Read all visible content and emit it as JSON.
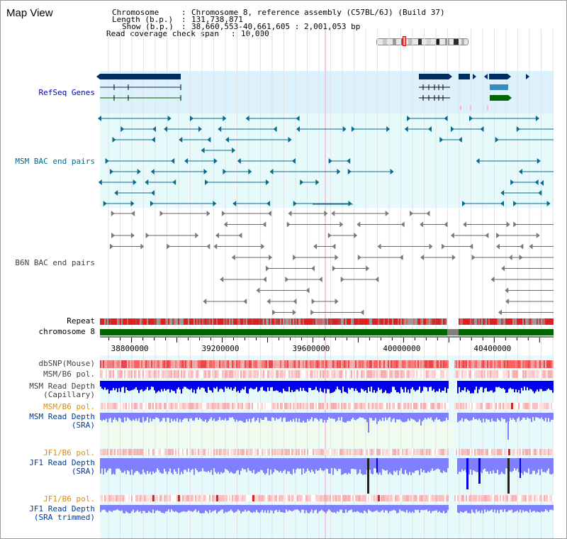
{
  "page": {
    "title": "Map View"
  },
  "info": {
    "chromosome_label": "Chromosome",
    "chromosome_value": "Chromosome 8, reference assembly (C57BL/6J) (Build 37)",
    "length_label": "Length (b.p.)",
    "length_value": "131,738,871",
    "show_label": "Show (b.p.)",
    "show_value": "38,660,553-40,661,605 : 2,001,053 bp",
    "coverage_label": "Read coverage check span",
    "coverage_value": "10,000"
  },
  "tracks": {
    "refseq": "RefSeq Genes",
    "msm_bac": "MSM BAC end pairs",
    "b6n_bac": "B6N BAC end pairs",
    "repeat": "Repeat",
    "chromosome": "chromosome 8",
    "dbsnp": "dbSNP(Mouse)",
    "msm_b6_pol": "MSM/B6 pol.",
    "msm_depth_cap_1": "MSM Read Depth",
    "msm_depth_cap_2": "(Capillary)",
    "msm_b6_pol_2": "MSM/B6 pol.",
    "msm_depth_sra_1": "MSM Read Depth",
    "msm_depth_sra_2": "(SRA)",
    "jf1_b6_pol": "JF1/B6 pol.",
    "jf1_depth_sra_1": "JF1 Read Depth",
    "jf1_depth_sra_2": "(SRA)",
    "jf1_b6_pol_2": "JF1/B6 pol.",
    "jf1_depth_trim_1": "JF1 Read Depth",
    "jf1_depth_trim_2": "(SRA trimmed)"
  },
  "axis": {
    "ticks": [
      "38800000",
      "39200000",
      "39600000",
      "40000000",
      "40400000"
    ],
    "tick_values": [
      38800000,
      39200000,
      39600000,
      40000000,
      40400000
    ],
    "range": [
      38660553,
      40661605
    ]
  },
  "colors": {
    "refseq_bg": "#dcf1fb",
    "msm_bg": "#e6f9fb",
    "gene_dark": "#002d62",
    "gene_mid": "#3a8cbc",
    "gene_green": "#006400",
    "msm_bac": "#0b6a8c",
    "b6n_bac": "#666666",
    "chromosome": "#006400",
    "read_depth": "#0000ee",
    "read_depth_light": "#8080ff"
  }
}
